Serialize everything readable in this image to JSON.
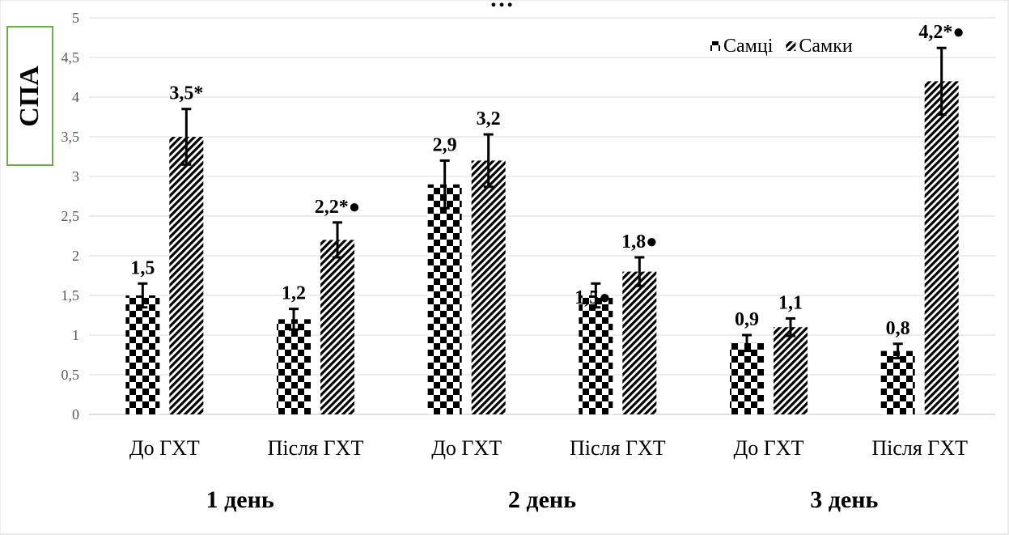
{
  "chart_data": {
    "type": "bar",
    "title": "…",
    "ylabel": "СПА",
    "ylim": [
      0,
      5
    ],
    "yticks": [
      "0",
      "0,5",
      "1",
      "1,5",
      "2",
      "2,5",
      "3",
      "3,5",
      "4",
      "4,5",
      "5"
    ],
    "grid": true,
    "legend_position": "top-right",
    "categories": [
      "До ГХТ",
      "Після ГХТ",
      "До ГХТ",
      "Після ГХТ",
      "До ГХТ",
      "Після ГХТ"
    ],
    "groups": [
      {
        "label": "1 день",
        "span": [
          0,
          1
        ]
      },
      {
        "label": "2 день",
        "span": [
          2,
          3
        ]
      },
      {
        "label": "3 день",
        "span": [
          4,
          5
        ]
      }
    ],
    "series": [
      {
        "name": "Самці",
        "pattern": "checkerboard",
        "values": [
          1.5,
          1.2,
          2.9,
          1.5,
          0.9,
          0.8
        ],
        "errors": [
          0.15,
          0.13,
          0.3,
          0.15,
          0.1,
          0.09
        ],
        "labels": [
          "1,5",
          "1,2",
          "2,9",
          "1,5●",
          "0,9",
          "0,8"
        ]
      },
      {
        "name": "Самки",
        "pattern": "diagonal",
        "values": [
          3.5,
          2.2,
          3.2,
          1.8,
          1.1,
          4.2
        ],
        "errors": [
          0.35,
          0.22,
          0.33,
          0.18,
          0.11,
          0.42
        ],
        "labels": [
          "3,5*",
          "2,2*●",
          "3,2",
          "1,8●",
          "1,1",
          "4,2*●"
        ]
      }
    ]
  }
}
